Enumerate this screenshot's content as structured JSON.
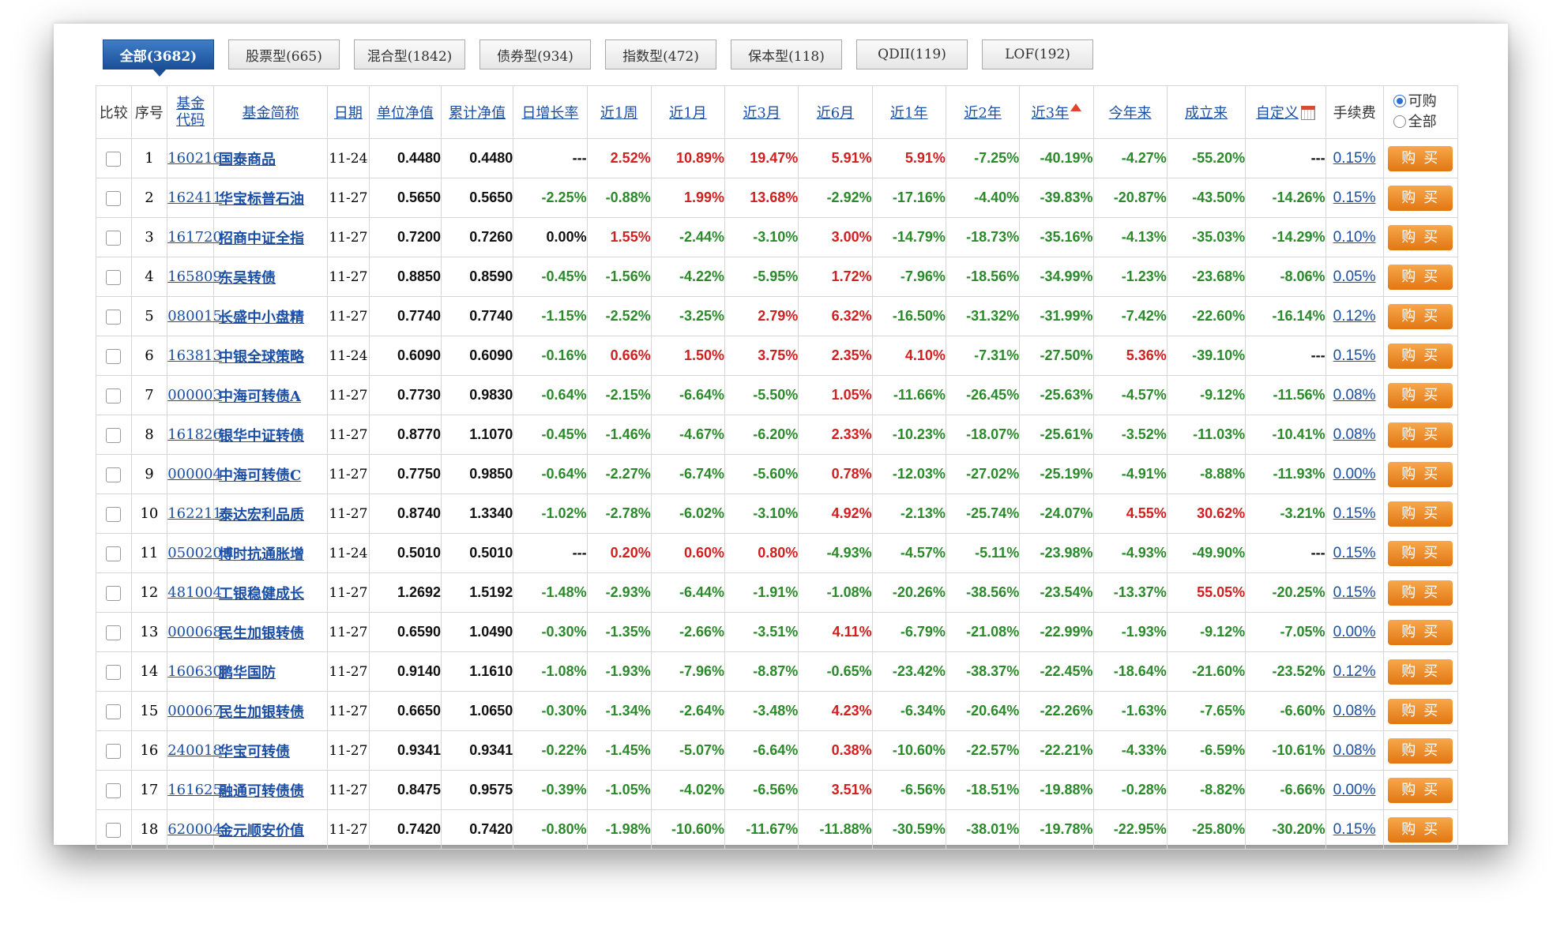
{
  "tabs": [
    {
      "label": "全部(3682)",
      "active": true
    },
    {
      "label": "股票型(665)",
      "active": false
    },
    {
      "label": "混合型(1842)",
      "active": false
    },
    {
      "label": "债券型(934)",
      "active": false
    },
    {
      "label": "指数型(472)",
      "active": false
    },
    {
      "label": "保本型(118)",
      "active": false
    },
    {
      "label": "QDII(119)",
      "active": false
    },
    {
      "label": "LOF(192)",
      "active": false
    }
  ],
  "table": {
    "headers": {
      "compare": "比较",
      "index": "序号",
      "code": "基金代码",
      "name": "基金简称",
      "date": "日期",
      "nav": "单位净值",
      "acc_nav": "累计净值",
      "daily": "日增长率",
      "w1": "近1周",
      "m1": "近1月",
      "m3": "近3月",
      "m6": "近6月",
      "y1": "近1年",
      "y2": "近2年",
      "y3": "近3年",
      "ytd": "今年来",
      "since": "成立来",
      "custom": "自定义",
      "fee": "手续费"
    },
    "filter": {
      "option_buyable": "可购",
      "option_all": "全部",
      "selected": "可购"
    },
    "buy_label": "购买",
    "rows": [
      {
        "idx": "1",
        "code": "160216",
        "name": "国泰商品",
        "date": "11-24",
        "nav": "0.4480",
        "acc": "0.4480",
        "daily": "---",
        "w1": "2.52%",
        "m1": "10.89%",
        "m3": "19.47%",
        "m6": "5.91%",
        "y1": "5.91%",
        "y2": "-7.25%",
        "y3": "-40.19%",
        "ytd": "-4.27%",
        "since": "-55.20%",
        "custom": "---",
        "fee": "0.15%"
      },
      {
        "idx": "2",
        "code": "162411",
        "name": "华宝标普石油",
        "date": "11-27",
        "nav": "0.5650",
        "acc": "0.5650",
        "daily": "-2.25%",
        "w1": "-0.88%",
        "m1": "1.99%",
        "m3": "13.68%",
        "m6": "-2.92%",
        "y1": "-17.16%",
        "y2": "-4.40%",
        "y3": "-39.83%",
        "ytd": "-20.87%",
        "since": "-43.50%",
        "custom": "-14.26%",
        "fee": "0.15%"
      },
      {
        "idx": "3",
        "code": "161720",
        "name": "招商中证全指",
        "date": "11-27",
        "nav": "0.7200",
        "acc": "0.7260",
        "daily": "0.00%",
        "w1": "1.55%",
        "m1": "-2.44%",
        "m3": "-3.10%",
        "m6": "3.00%",
        "y1": "-14.79%",
        "y2": "-18.73%",
        "y3": "-35.16%",
        "ytd": "-4.13%",
        "since": "-35.03%",
        "custom": "-14.29%",
        "fee": "0.10%"
      },
      {
        "idx": "4",
        "code": "165809",
        "name": "东吴转债",
        "date": "11-27",
        "nav": "0.8850",
        "acc": "0.8590",
        "daily": "-0.45%",
        "w1": "-1.56%",
        "m1": "-4.22%",
        "m3": "-5.95%",
        "m6": "1.72%",
        "y1": "-7.96%",
        "y2": "-18.56%",
        "y3": "-34.99%",
        "ytd": "-1.23%",
        "since": "-23.68%",
        "custom": "-8.06%",
        "fee": "0.05%"
      },
      {
        "idx": "5",
        "code": "080015",
        "name": "长盛中小盘精",
        "date": "11-27",
        "nav": "0.7740",
        "acc": "0.7740",
        "daily": "-1.15%",
        "w1": "-2.52%",
        "m1": "-3.25%",
        "m3": "2.79%",
        "m6": "6.32%",
        "y1": "-16.50%",
        "y2": "-31.32%",
        "y3": "-31.99%",
        "ytd": "-7.42%",
        "since": "-22.60%",
        "custom": "-16.14%",
        "fee": "0.12%"
      },
      {
        "idx": "6",
        "code": "163813",
        "name": "中银全球策略",
        "date": "11-24",
        "nav": "0.6090",
        "acc": "0.6090",
        "daily": "-0.16%",
        "w1": "0.66%",
        "m1": "1.50%",
        "m3": "3.75%",
        "m6": "2.35%",
        "y1": "4.10%",
        "y2": "-7.31%",
        "y3": "-27.50%",
        "ytd": "5.36%",
        "since": "-39.10%",
        "custom": "---",
        "fee": "0.15%"
      },
      {
        "idx": "7",
        "code": "000003",
        "name": "中海可转债A",
        "date": "11-27",
        "nav": "0.7730",
        "acc": "0.9830",
        "daily": "-0.64%",
        "w1": "-2.15%",
        "m1": "-6.64%",
        "m3": "-5.50%",
        "m6": "1.05%",
        "y1": "-11.66%",
        "y2": "-26.45%",
        "y3": "-25.63%",
        "ytd": "-4.57%",
        "since": "-9.12%",
        "custom": "-11.56%",
        "fee": "0.08%"
      },
      {
        "idx": "8",
        "code": "161826",
        "name": "银华中证转债",
        "date": "11-27",
        "nav": "0.8770",
        "acc": "1.1070",
        "daily": "-0.45%",
        "w1": "-1.46%",
        "m1": "-4.67%",
        "m3": "-6.20%",
        "m6": "2.33%",
        "y1": "-10.23%",
        "y2": "-18.07%",
        "y3": "-25.61%",
        "ytd": "-3.52%",
        "since": "-11.03%",
        "custom": "-10.41%",
        "fee": "0.08%"
      },
      {
        "idx": "9",
        "code": "000004",
        "name": "中海可转债C",
        "date": "11-27",
        "nav": "0.7750",
        "acc": "0.9850",
        "daily": "-0.64%",
        "w1": "-2.27%",
        "m1": "-6.74%",
        "m3": "-5.60%",
        "m6": "0.78%",
        "y1": "-12.03%",
        "y2": "-27.02%",
        "y3": "-25.19%",
        "ytd": "-4.91%",
        "since": "-8.88%",
        "custom": "-11.93%",
        "fee": "0.00%"
      },
      {
        "idx": "10",
        "code": "162211",
        "name": "泰达宏利品质",
        "date": "11-27",
        "nav": "0.8740",
        "acc": "1.3340",
        "daily": "-1.02%",
        "w1": "-2.78%",
        "m1": "-6.02%",
        "m3": "-3.10%",
        "m6": "4.92%",
        "y1": "-2.13%",
        "y2": "-25.74%",
        "y3": "-24.07%",
        "ytd": "4.55%",
        "since": "30.62%",
        "custom": "-3.21%",
        "fee": "0.15%"
      },
      {
        "idx": "11",
        "code": "050020",
        "name": "博时抗通胀增",
        "date": "11-24",
        "nav": "0.5010",
        "acc": "0.5010",
        "daily": "---",
        "w1": "0.20%",
        "m1": "0.60%",
        "m3": "0.80%",
        "m6": "-4.93%",
        "y1": "-4.57%",
        "y2": "-5.11%",
        "y3": "-23.98%",
        "ytd": "-4.93%",
        "since": "-49.90%",
        "custom": "---",
        "fee": "0.15%"
      },
      {
        "idx": "12",
        "code": "481004",
        "name": "工银稳健成长",
        "date": "11-27",
        "nav": "1.2692",
        "acc": "1.5192",
        "daily": "-1.48%",
        "w1": "-2.93%",
        "m1": "-6.44%",
        "m3": "-1.91%",
        "m6": "-1.08%",
        "y1": "-20.26%",
        "y2": "-38.56%",
        "y3": "-23.54%",
        "ytd": "-13.37%",
        "since": "55.05%",
        "custom": "-20.25%",
        "fee": "0.15%"
      },
      {
        "idx": "13",
        "code": "000068",
        "name": "民生加银转债",
        "date": "11-27",
        "nav": "0.6590",
        "acc": "1.0490",
        "daily": "-0.30%",
        "w1": "-1.35%",
        "m1": "-2.66%",
        "m3": "-3.51%",
        "m6": "4.11%",
        "y1": "-6.79%",
        "y2": "-21.08%",
        "y3": "-22.99%",
        "ytd": "-1.93%",
        "since": "-9.12%",
        "custom": "-7.05%",
        "fee": "0.00%"
      },
      {
        "idx": "14",
        "code": "160630",
        "name": "鹏华国防",
        "date": "11-27",
        "nav": "0.9140",
        "acc": "1.1610",
        "daily": "-1.08%",
        "w1": "-1.93%",
        "m1": "-7.96%",
        "m3": "-8.87%",
        "m6": "-0.65%",
        "y1": "-23.42%",
        "y2": "-38.37%",
        "y3": "-22.45%",
        "ytd": "-18.64%",
        "since": "-21.60%",
        "custom": "-23.52%",
        "fee": "0.12%"
      },
      {
        "idx": "15",
        "code": "000067",
        "name": "民生加银转债",
        "date": "11-27",
        "nav": "0.6650",
        "acc": "1.0650",
        "daily": "-0.30%",
        "w1": "-1.34%",
        "m1": "-2.64%",
        "m3": "-3.48%",
        "m6": "4.23%",
        "y1": "-6.34%",
        "y2": "-20.64%",
        "y3": "-22.26%",
        "ytd": "-1.63%",
        "since": "-7.65%",
        "custom": "-6.60%",
        "fee": "0.08%"
      },
      {
        "idx": "16",
        "code": "240018",
        "name": "华宝可转债",
        "date": "11-27",
        "nav": "0.9341",
        "acc": "0.9341",
        "daily": "-0.22%",
        "w1": "-1.45%",
        "m1": "-5.07%",
        "m3": "-6.64%",
        "m6": "0.38%",
        "y1": "-10.60%",
        "y2": "-22.57%",
        "y3": "-22.21%",
        "ytd": "-4.33%",
        "since": "-6.59%",
        "custom": "-10.61%",
        "fee": "0.08%"
      },
      {
        "idx": "17",
        "code": "161625",
        "name": "融通可转债债",
        "date": "11-27",
        "nav": "0.8475",
        "acc": "0.9575",
        "daily": "-0.39%",
        "w1": "-1.05%",
        "m1": "-4.02%",
        "m3": "-6.56%",
        "m6": "3.51%",
        "y1": "-6.56%",
        "y2": "-18.51%",
        "y3": "-19.88%",
        "ytd": "-0.28%",
        "since": "-8.82%",
        "custom": "-6.66%",
        "fee": "0.00%"
      },
      {
        "idx": "18",
        "code": "620004",
        "name": "金元顺安价值",
        "date": "11-27",
        "nav": "0.7420",
        "acc": "0.7420",
        "daily": "-0.80%",
        "w1": "-1.98%",
        "m1": "-10.60%",
        "m3": "-11.67%",
        "m6": "-11.88%",
        "y1": "-30.59%",
        "y2": "-38.01%",
        "y3": "-19.78%",
        "ytd": "-22.95%",
        "since": "-25.80%",
        "custom": "-30.20%",
        "fee": "0.15%"
      }
    ]
  },
  "colors": {
    "up": "#d01f1f",
    "down": "#2a8a2a",
    "link": "#1b4fa6",
    "tab_active": "#1b4f97",
    "buy_button": "#e27612"
  },
  "icons": {
    "sort": "sort-up-icon",
    "custom_date": "calendar-icon"
  }
}
